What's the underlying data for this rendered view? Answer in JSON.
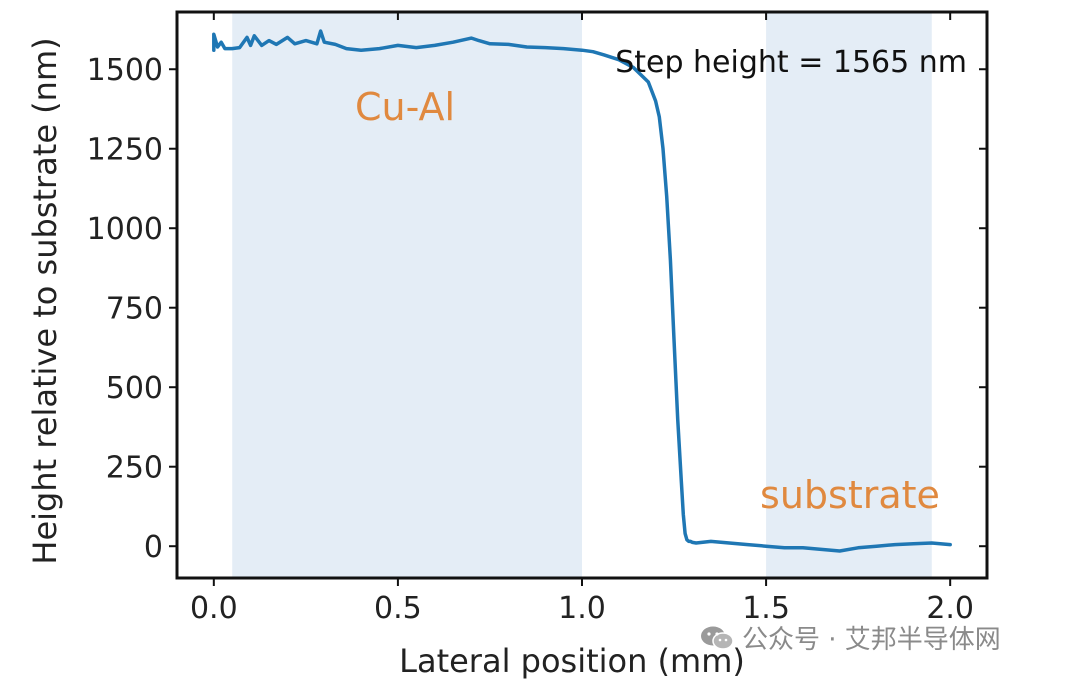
{
  "chart_data": {
    "type": "line",
    "xlabel": "Lateral position (mm)",
    "ylabel": "Height relative to substrate (nm)",
    "xlim": [
      -0.1,
      2.1
    ],
    "ylim": [
      -100,
      1680
    ],
    "xticks": [
      0.0,
      0.5,
      1.0,
      1.5,
      2.0
    ],
    "xtick_labels": [
      "0.0",
      "0.5",
      "1.0",
      "1.5",
      "2.0"
    ],
    "yticks": [
      0,
      250,
      500,
      750,
      1000,
      1250,
      1500
    ],
    "ytick_labels": [
      "0",
      "250",
      "500",
      "750",
      "1000",
      "1250",
      "1500"
    ],
    "grid": false,
    "shaded_regions": [
      {
        "x_start": 0.05,
        "x_end": 1.0,
        "label": "Cu-Al"
      },
      {
        "x_start": 1.5,
        "x_end": 1.95,
        "label": "substrate"
      }
    ],
    "annotation": "Step height = 1565 nm",
    "series": [
      {
        "color": "#1f77b4",
        "x": [
          0.0,
          0.0,
          0.01,
          0.02,
          0.03,
          0.05,
          0.07,
          0.09,
          0.1,
          0.11,
          0.13,
          0.15,
          0.17,
          0.2,
          0.22,
          0.25,
          0.28,
          0.29,
          0.3,
          0.33,
          0.36,
          0.4,
          0.45,
          0.5,
          0.55,
          0.6,
          0.65,
          0.7,
          0.72,
          0.75,
          0.8,
          0.85,
          0.9,
          0.95,
          1.0,
          1.03,
          1.06,
          1.1,
          1.14,
          1.18,
          1.2,
          1.21,
          1.22,
          1.23,
          1.24,
          1.25,
          1.26,
          1.27,
          1.275,
          1.28,
          1.285,
          1.29,
          1.295,
          1.3,
          1.31,
          1.35,
          1.4,
          1.45,
          1.5,
          1.55,
          1.6,
          1.65,
          1.7,
          1.75,
          1.8,
          1.85,
          1.9,
          1.95,
          2.0
        ],
        "y": [
          1560,
          1610,
          1570,
          1585,
          1565,
          1565,
          1568,
          1600,
          1575,
          1605,
          1575,
          1590,
          1578,
          1600,
          1580,
          1590,
          1580,
          1620,
          1585,
          1578,
          1565,
          1560,
          1565,
          1575,
          1568,
          1575,
          1585,
          1598,
          1590,
          1580,
          1578,
          1570,
          1568,
          1565,
          1560,
          1555,
          1545,
          1530,
          1505,
          1460,
          1400,
          1350,
          1250,
          1100,
          900,
          650,
          400,
          200,
          100,
          40,
          20,
          15,
          15,
          12,
          10,
          15,
          10,
          5,
          0,
          -5,
          -5,
          -10,
          -15,
          -5,
          0,
          5,
          8,
          10,
          5
        ]
      }
    ]
  },
  "watermark": {
    "text": "公众号 · 艾邦半导体网",
    "icon": "wechat-icon"
  }
}
